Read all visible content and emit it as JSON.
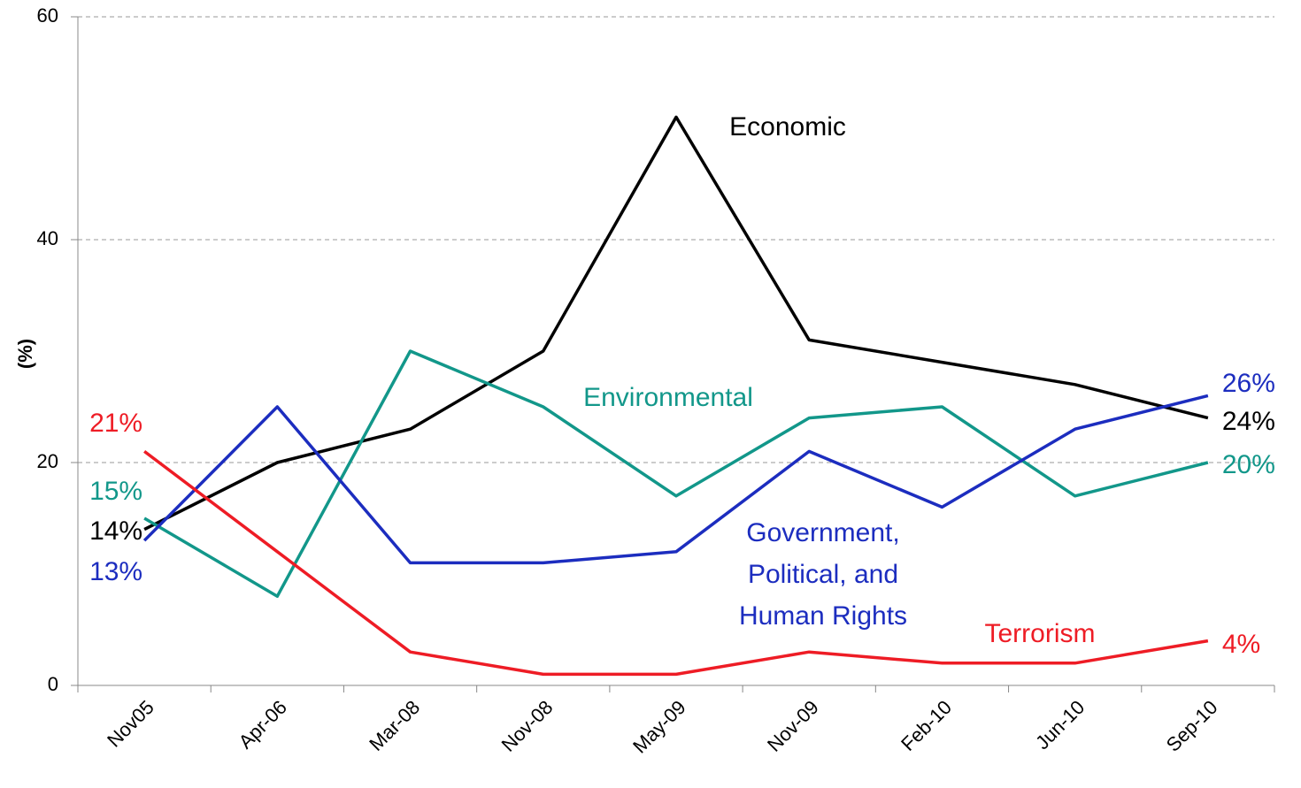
{
  "chart_data": {
    "type": "line",
    "y_label": "(%)",
    "categories": [
      "Nov05",
      "Apr-06",
      "Mar-08",
      "Nov-08",
      "May-09",
      "Nov-09",
      "Feb-10",
      "Jun-10",
      "Sep-10"
    ],
    "series": [
      {
        "name": "Economic",
        "color": "#000000",
        "values": [
          14,
          20,
          23,
          30,
          51,
          31,
          29,
          27,
          24
        ],
        "value_labels": [
          "14%",
          null,
          null,
          null,
          null,
          null,
          null,
          null,
          "24%"
        ]
      },
      {
        "name": "Environmental",
        "color": "#12978a",
        "values": [
          15,
          8,
          30,
          25,
          17,
          24,
          25,
          17,
          20
        ],
        "value_labels": [
          "15%",
          null,
          null,
          null,
          null,
          null,
          null,
          null,
          "20%"
        ]
      },
      {
        "name": "Government, Political, and Human Rights",
        "color": "#1c2dbf",
        "values": [
          13,
          25,
          11,
          11,
          12,
          21,
          16,
          23,
          26
        ],
        "value_labels": [
          "13%",
          null,
          null,
          null,
          null,
          null,
          null,
          null,
          "26%"
        ]
      },
      {
        "name": "Terrorism",
        "color": "#ee1c25",
        "values": [
          21,
          12,
          3,
          1,
          1,
          3,
          2,
          2,
          4
        ],
        "value_labels": [
          "21%",
          null,
          null,
          null,
          null,
          null,
          null,
          null,
          "4%"
        ]
      }
    ],
    "ylim": [
      0,
      60
    ],
    "yticks": [
      0,
      20,
      40,
      60
    ],
    "grid": true
  }
}
